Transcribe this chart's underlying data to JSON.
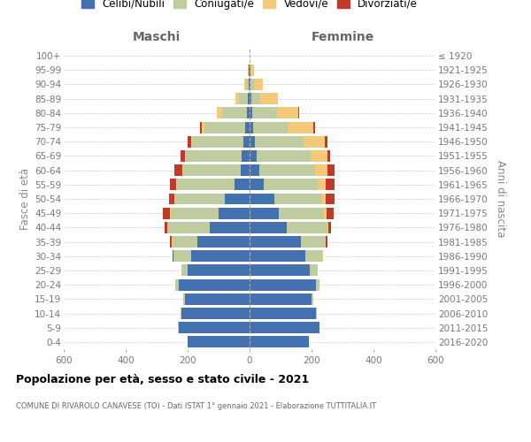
{
  "age_groups": [
    "0-4",
    "5-9",
    "10-14",
    "15-19",
    "20-24",
    "25-29",
    "30-34",
    "35-39",
    "40-44",
    "45-49",
    "50-54",
    "55-59",
    "60-64",
    "65-69",
    "70-74",
    "75-79",
    "80-84",
    "85-89",
    "90-94",
    "95-99",
    "100+"
  ],
  "birth_years": [
    "2016-2020",
    "2011-2015",
    "2006-2010",
    "2001-2005",
    "1996-2000",
    "1991-1995",
    "1986-1990",
    "1981-1985",
    "1976-1980",
    "1971-1975",
    "1966-1970",
    "1961-1965",
    "1956-1960",
    "1951-1955",
    "1946-1950",
    "1941-1945",
    "1936-1940",
    "1931-1935",
    "1926-1930",
    "1921-1925",
    "≤ 1920"
  ],
  "males_celibi": [
    200,
    230,
    220,
    210,
    230,
    200,
    190,
    170,
    130,
    100,
    80,
    50,
    30,
    25,
    20,
    15,
    10,
    5,
    3,
    2,
    0
  ],
  "males_coniugati": [
    0,
    2,
    2,
    5,
    10,
    20,
    55,
    80,
    135,
    155,
    160,
    185,
    185,
    180,
    165,
    130,
    80,
    30,
    8,
    2,
    0
  ],
  "males_vedovi": [
    0,
    0,
    0,
    0,
    0,
    0,
    1,
    1,
    2,
    2,
    2,
    3,
    3,
    5,
    5,
    10,
    15,
    10,
    5,
    2,
    0
  ],
  "males_divorziati": [
    0,
    0,
    0,
    0,
    0,
    1,
    2,
    5,
    8,
    22,
    18,
    20,
    25,
    12,
    10,
    5,
    2,
    0,
    0,
    0,
    0
  ],
  "fem_nubili": [
    190,
    225,
    215,
    200,
    215,
    195,
    180,
    165,
    120,
    95,
    80,
    45,
    30,
    22,
    18,
    12,
    8,
    5,
    3,
    2,
    0
  ],
  "fem_coniugate": [
    0,
    2,
    2,
    5,
    10,
    25,
    55,
    80,
    130,
    145,
    155,
    175,
    180,
    175,
    155,
    115,
    80,
    30,
    10,
    3,
    0
  ],
  "fem_vedove": [
    0,
    0,
    0,
    0,
    0,
    0,
    1,
    2,
    5,
    8,
    12,
    25,
    40,
    55,
    70,
    80,
    70,
    55,
    30,
    8,
    1
  ],
  "fem_divorziate": [
    0,
    0,
    0,
    0,
    0,
    1,
    2,
    5,
    8,
    22,
    28,
    30,
    25,
    8,
    8,
    5,
    3,
    2,
    0,
    0,
    0
  ],
  "color_celibi": "#4472b0",
  "color_coniugati": "#bfcc9f",
  "color_vedovi": "#f5c97a",
  "color_divorziati": "#c0392b",
  "xlim": 600,
  "legend_labels": [
    "Celibi/Nubili",
    "Coniugati/e",
    "Vedovi/e",
    "Divorziati/e"
  ],
  "label_maschi": "Maschi",
  "label_femmine": "Femmine",
  "ylabel_left": "Fasce di età",
  "ylabel_right": "Anni di nascita",
  "title1": "Popolazione per età, sesso e stato civile - 2021",
  "title2": "COMUNE DI RIVAROLO CANAVESE (TO) - Dati ISTAT 1° gennaio 2021 - Elaborazione TUTTITALIA.IT"
}
